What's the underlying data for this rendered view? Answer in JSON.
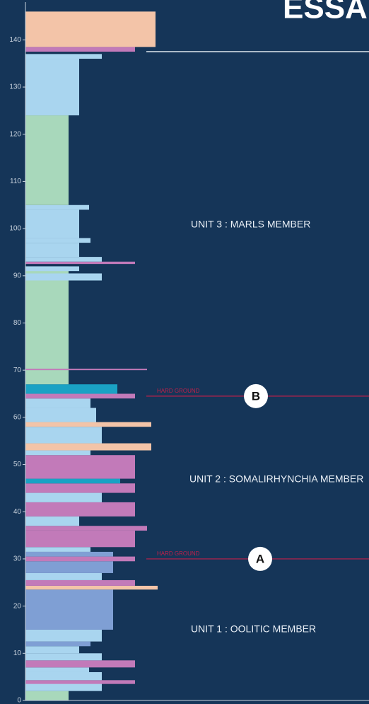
{
  "chart_data": {
    "type": "strat",
    "title": "ESSA",
    "ylim": [
      0,
      148
    ],
    "yticks": [
      0,
      10,
      20,
      30,
      40,
      50,
      60,
      70,
      80,
      90,
      100,
      110,
      120,
      130,
      140
    ],
    "units": [
      "UNIT 3 : MARLS MEMBER",
      "UNIT 2 : SOMALIRHYNCHIA MEMBER",
      "UNIT 1 : OOLITIC MEMBER"
    ],
    "markers": [
      {
        "label": "B",
        "note": "HARD GROUND",
        "depth": 64.5
      },
      {
        "label": "A",
        "note": "HARD GROUND",
        "depth": 30
      }
    ],
    "boundaries": [
      137.5
    ],
    "layers": [
      {
        "from": 0,
        "to": 2,
        "width": 61,
        "color": "#a8d8bb"
      },
      {
        "from": 2,
        "to": 4,
        "width": 108,
        "color": "#a9d5ef"
      },
      {
        "from": 3.5,
        "to": 4.3,
        "width": 155,
        "color": "#c27ab9"
      },
      {
        "from": 4.3,
        "to": 6,
        "width": 108,
        "color": "#a9d5ef"
      },
      {
        "from": 6,
        "to": 7,
        "width": 90,
        "color": "#a9d5ef"
      },
      {
        "from": 7,
        "to": 8.5,
        "width": 155,
        "color": "#c27ab9"
      },
      {
        "from": 8.5,
        "to": 10,
        "width": 108,
        "color": "#a9d5ef"
      },
      {
        "from": 10,
        "to": 11.5,
        "width": 76,
        "color": "#a9d5ef"
      },
      {
        "from": 11.5,
        "to": 12.5,
        "width": 92,
        "color": "#7f9fd4"
      },
      {
        "from": 12.5,
        "to": 15,
        "width": 108,
        "color": "#a9d5ef"
      },
      {
        "from": 15,
        "to": 23.5,
        "width": 124,
        "color": "#7f9fd4"
      },
      {
        "from": 23.5,
        "to": 24.3,
        "width": 187,
        "color": "#f3c4a8"
      },
      {
        "from": 24.3,
        "to": 25.5,
        "width": 155,
        "color": "#c27ab9"
      },
      {
        "from": 25.5,
        "to": 27,
        "width": 108,
        "color": "#a9d5ef"
      },
      {
        "from": 27,
        "to": 29.5,
        "width": 124,
        "color": "#7f9fd4"
      },
      {
        "from": 29.5,
        "to": 30.5,
        "width": 155,
        "color": "#c27ab9"
      },
      {
        "from": 30.5,
        "to": 31.5,
        "width": 124,
        "color": "#7f9fd4"
      },
      {
        "from": 31.5,
        "to": 32.5,
        "width": 92,
        "color": "#a9d5ef"
      },
      {
        "from": 32.5,
        "to": 36,
        "width": 155,
        "color": "#c27ab9"
      },
      {
        "from": 36,
        "to": 37,
        "width": 172,
        "color": "#c27ab9"
      },
      {
        "from": 37,
        "to": 39,
        "width": 76,
        "color": "#a9d5ef"
      },
      {
        "from": 39,
        "to": 42,
        "width": 155,
        "color": "#c27ab9"
      },
      {
        "from": 42,
        "to": 44,
        "width": 108,
        "color": "#a9d5ef"
      },
      {
        "from": 44,
        "to": 46,
        "width": 155,
        "color": "#c27ab9"
      },
      {
        "from": 46,
        "to": 47,
        "width": 134,
        "color": "#1aa2c4"
      },
      {
        "from": 47,
        "to": 52,
        "width": 155,
        "color": "#c27ab9"
      },
      {
        "from": 52,
        "to": 53,
        "width": 92,
        "color": "#a9d5ef"
      },
      {
        "from": 53,
        "to": 54.5,
        "width": 178,
        "color": "#f3c4a8"
      },
      {
        "from": 54.5,
        "to": 58,
        "width": 108,
        "color": "#a9d5ef"
      },
      {
        "from": 58,
        "to": 59,
        "width": 178,
        "color": "#f3c4a8"
      },
      {
        "from": 59,
        "to": 62,
        "width": 100,
        "color": "#a9d5ef"
      },
      {
        "from": 62,
        "to": 64,
        "width": 92,
        "color": "#a9d5ef"
      },
      {
        "from": 64,
        "to": 65,
        "width": 155,
        "color": "#c27ab9"
      },
      {
        "from": 65,
        "to": 67,
        "width": 130,
        "color": "#1aa2c4"
      },
      {
        "from": 67,
        "to": 92,
        "width": 61,
        "color": "#a8d8bb"
      },
      {
        "from": 70,
        "to": 70.3,
        "width": 172,
        "color": "#c27ab9"
      },
      {
        "from": 89,
        "to": 90.5,
        "width": 108,
        "color": "#a9d5ef"
      },
      {
        "from": 91,
        "to": 92,
        "width": 76,
        "color": "#a9d5ef"
      },
      {
        "from": 92.5,
        "to": 93,
        "width": 155,
        "color": "#c27ab9"
      },
      {
        "from": 93,
        "to": 94,
        "width": 108,
        "color": "#a9d5ef"
      },
      {
        "from": 94,
        "to": 97,
        "width": 76,
        "color": "#a9d5ef"
      },
      {
        "from": 97,
        "to": 98,
        "width": 92,
        "color": "#a9d5ef"
      },
      {
        "from": 98,
        "to": 104,
        "width": 76,
        "color": "#a9d5ef"
      },
      {
        "from": 104,
        "to": 105,
        "width": 90,
        "color": "#a9d5ef"
      },
      {
        "from": 105,
        "to": 124,
        "width": 61,
        "color": "#a8d8bb"
      },
      {
        "from": 124,
        "to": 136,
        "width": 76,
        "color": "#a9d5ef"
      },
      {
        "from": 136,
        "to": 137,
        "width": 108,
        "color": "#a9d5ef"
      },
      {
        "from": 137.5,
        "to": 138.5,
        "width": 155,
        "color": "#c27ab9"
      },
      {
        "from": 138.5,
        "to": 146,
        "width": 184,
        "color": "#f3c4a8"
      }
    ]
  }
}
